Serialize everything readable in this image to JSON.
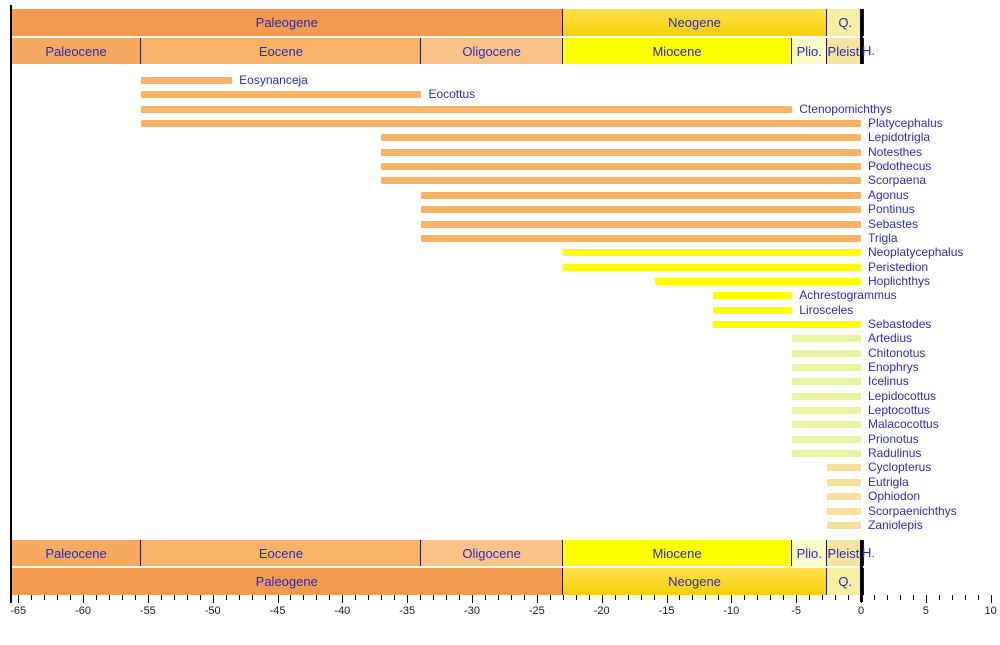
{
  "colors": {
    "paleogene": "#F29A4F",
    "neogene_top": "#FFE14D",
    "neogene_bottom": "#F7CE05",
    "quaternary": "#F6EFA3",
    "paleocene": "#F5AA62",
    "eocene": "#F8B369",
    "oligocene": "#FAC489",
    "miocene": "#FFFF00",
    "pliocene": "#FAFAC8",
    "pleistocene": "#F6E5A2",
    "bar_eocene": "#F8B369",
    "bar_miocene": "#FFFF00",
    "bar_pliocene": "#EBF2A2",
    "bar_pleistocene": "#F5E09E",
    "label_text": "#2B2BB8",
    "axis_text": "#1a1a1a"
  },
  "time_scale": {
    "holocene_label": "H.",
    "periods": [
      {
        "label": "Paleogene",
        "start": -65.5,
        "end": -23,
        "color_key": "paleogene"
      },
      {
        "label": "Neogene",
        "start": -23,
        "end": -2.6,
        "color_key": "neogene"
      },
      {
        "label": "Q.",
        "start": -2.6,
        "end": 0.25,
        "color_key": "quaternary"
      }
    ],
    "epochs": [
      {
        "label": "Paleocene",
        "start": -65.5,
        "end": -55.5,
        "color_key": "paleocene"
      },
      {
        "label": "Eocene",
        "start": -55.5,
        "end": -33.9,
        "color_key": "eocene"
      },
      {
        "label": "Oligocene",
        "start": -33.9,
        "end": -23,
        "color_key": "oligocene"
      },
      {
        "label": "Miocene",
        "start": -23,
        "end": -5.3,
        "color_key": "miocene"
      },
      {
        "label": "Plio.",
        "start": -5.3,
        "end": -2.6,
        "color_key": "pliocene"
      },
      {
        "label": "Pleist.",
        "start": -2.6,
        "end": 0.25,
        "color_key": "pleistocene"
      }
    ]
  },
  "chart_data": {
    "type": "bar",
    "subtype": "horizontal-stratigraphic-range",
    "xlim": [
      -65.5,
      10
    ],
    "x_ticks": [
      -65,
      -60,
      -55,
      -50,
      -45,
      -40,
      -35,
      -30,
      -25,
      -20,
      -15,
      -10,
      -5,
      0,
      5,
      10
    ],
    "x_minor_tick_step": 1,
    "grid": false,
    "legend": false,
    "taxa": [
      {
        "name": "Eosynanceja",
        "start": -55.5,
        "end": -48.5,
        "group": "bar_eocene"
      },
      {
        "name": "Eocottus",
        "start": -55.5,
        "end": -33.9,
        "group": "bar_eocene"
      },
      {
        "name": "Ctenopomichthys",
        "start": -55.5,
        "end": -5.3,
        "group": "bar_eocene"
      },
      {
        "name": "Platycephalus",
        "start": -55.5,
        "end": 0,
        "group": "bar_eocene"
      },
      {
        "name": "Lepidotrigla",
        "start": -37,
        "end": 0,
        "group": "bar_eocene"
      },
      {
        "name": "Notesthes",
        "start": -37,
        "end": 0,
        "group": "bar_eocene"
      },
      {
        "name": "Podothecus",
        "start": -37,
        "end": 0,
        "group": "bar_eocene"
      },
      {
        "name": "Scorpaena",
        "start": -37,
        "end": 0,
        "group": "bar_eocene"
      },
      {
        "name": "Agonus",
        "start": -33.9,
        "end": 0,
        "group": "bar_eocene"
      },
      {
        "name": "Pontinus",
        "start": -33.9,
        "end": 0,
        "group": "bar_eocene"
      },
      {
        "name": "Sebastes",
        "start": -33.9,
        "end": 0,
        "group": "bar_eocene"
      },
      {
        "name": "Trigla",
        "start": -33.9,
        "end": 0,
        "group": "bar_eocene"
      },
      {
        "name": "Neoplatycephalus",
        "start": -23,
        "end": 0,
        "group": "bar_miocene"
      },
      {
        "name": "Peristedion",
        "start": -23,
        "end": 0,
        "group": "bar_miocene"
      },
      {
        "name": "Hoplichthys",
        "start": -15.9,
        "end": 0,
        "group": "bar_miocene"
      },
      {
        "name": "Achrestogrammus",
        "start": -11.4,
        "end": -5.3,
        "group": "bar_miocene"
      },
      {
        "name": "Lirosceles",
        "start": -11.4,
        "end": -5.3,
        "group": "bar_miocene"
      },
      {
        "name": "Sebastodes",
        "start": -11.4,
        "end": 0,
        "group": "bar_miocene"
      },
      {
        "name": "Artedius",
        "start": -5.3,
        "end": 0,
        "group": "bar_pliocene"
      },
      {
        "name": "Chitonotus",
        "start": -5.3,
        "end": 0,
        "group": "bar_pliocene"
      },
      {
        "name": "Enophrys",
        "start": -5.3,
        "end": 0,
        "group": "bar_pliocene"
      },
      {
        "name": "Icelinus",
        "start": -5.3,
        "end": 0,
        "group": "bar_pliocene"
      },
      {
        "name": "Lepidocottus",
        "start": -5.3,
        "end": 0,
        "group": "bar_pliocene"
      },
      {
        "name": "Leptocottus",
        "start": -5.3,
        "end": 0,
        "group": "bar_pliocene"
      },
      {
        "name": "Malacocottus",
        "start": -5.3,
        "end": 0,
        "group": "bar_pliocene"
      },
      {
        "name": "Prionotus",
        "start": -5.3,
        "end": 0,
        "group": "bar_pliocene"
      },
      {
        "name": "Radulinus",
        "start": -5.3,
        "end": 0,
        "group": "bar_pliocene"
      },
      {
        "name": "Cyclopterus",
        "start": -2.6,
        "end": 0,
        "group": "bar_pleistocene"
      },
      {
        "name": "Eutrigla",
        "start": -2.6,
        "end": 0,
        "group": "bar_pleistocene"
      },
      {
        "name": "Ophiodon",
        "start": -2.6,
        "end": 0,
        "group": "bar_pleistocene"
      },
      {
        "name": "Scorpaenichthys",
        "start": -2.6,
        "end": 0,
        "group": "bar_pleistocene"
      },
      {
        "name": "Zaniolepis",
        "start": -2.6,
        "end": 0,
        "group": "bar_pleistocene"
      }
    ]
  }
}
